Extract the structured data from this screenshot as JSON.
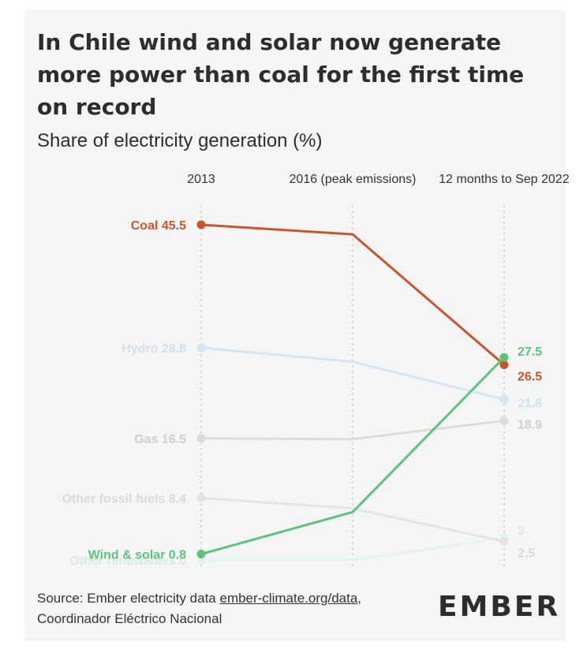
{
  "header": {
    "title": "In Chile wind and solar now generate more power than coal for the first time on record",
    "subtitle": "Share of electricity generation (%)"
  },
  "footer": {
    "source_prefix": "Source: Ember electricity data ",
    "source_link": "ember-climate.org/data",
    "source_suffix": ", Coordinador Eléctrico Nacional",
    "logo_text": "EMBER"
  },
  "chart_data": {
    "type": "line",
    "subtitle": "Share of electricity generation (%)",
    "ylabel": "",
    "x": [
      "2013",
      "2016 (peak emissions)",
      "12 months to Sep 2022"
    ],
    "ylim": [
      0,
      47
    ],
    "grid": "vertical dashed lines at each x",
    "series": [
      {
        "name": "Coal",
        "values": [
          45.5,
          44.2,
          26.5
        ],
        "color": "#c8562a",
        "opacity": 1,
        "start_label": "Coal 45.5",
        "end_label": "26.5"
      },
      {
        "name": "Hydro",
        "values": [
          28.8,
          26.9,
          21.8
        ],
        "color": "#d3e6f5",
        "opacity": 1,
        "start_label": "Hydro 28.8",
        "end_label": "21.8"
      },
      {
        "name": "Gas",
        "values": [
          16.5,
          16.4,
          18.9
        ],
        "color": "#dcdcdc",
        "opacity": 1,
        "start_label": "Gas 16.5",
        "end_label": "18.9"
      },
      {
        "name": "Other fossil fuels",
        "values": [
          8.4,
          7.0,
          2.5
        ],
        "color": "#e4e4e4",
        "opacity": 1,
        "start_label": "Other fossil fuels 8.4",
        "end_label": "2.5"
      },
      {
        "name": "Other renewables",
        "values": [
          0,
          0,
          3
        ],
        "color": "#e3f4ea",
        "opacity": 1,
        "start_label": "Other renewables 0",
        "end_label": "3"
      },
      {
        "name": "Wind & solar",
        "values": [
          0.8,
          6.5,
          27.5
        ],
        "color": "#5dc47c",
        "opacity": 1,
        "start_label": "Wind & solar 0.8",
        "end_label": "27.5"
      }
    ]
  }
}
